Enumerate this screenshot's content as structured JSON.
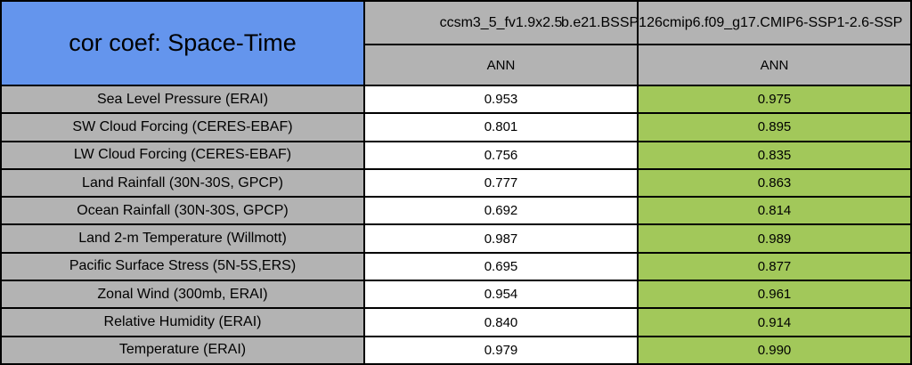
{
  "table": {
    "title": "cor coef: Space-Time",
    "columns": [
      {
        "model": "ccsm3_5_fv1.9x2.5",
        "season": "ANN"
      },
      {
        "model": "b.e21.BSSP126cmip6.f09_g17.CMIP6-SSP1-2.6-SSP",
        "season": "ANN",
        "note": "text clipped at right edge of image"
      }
    ],
    "rows": [
      {
        "label": "Sea Level Pressure (ERAI)",
        "values": [
          "0.953",
          "0.975"
        ]
      },
      {
        "label": "SW Cloud Forcing (CERES-EBAF)",
        "values": [
          "0.801",
          "0.895"
        ]
      },
      {
        "label": "LW Cloud Forcing (CERES-EBAF)",
        "values": [
          "0.756",
          "0.835"
        ]
      },
      {
        "label": "Land Rainfall (30N-30S, GPCP)",
        "values": [
          "0.777",
          "0.863"
        ]
      },
      {
        "label": "Ocean Rainfall (30N-30S, GPCP)",
        "values": [
          "0.692",
          "0.814"
        ]
      },
      {
        "label": "Land 2-m Temperature (Willmott)",
        "values": [
          "0.987",
          "0.989"
        ]
      },
      {
        "label": "Pacific Surface Stress (5N-5S,ERS)",
        "values": [
          "0.695",
          "0.877"
        ]
      },
      {
        "label": "Zonal Wind (300mb, ERAI)",
        "values": [
          "0.954",
          "0.961"
        ]
      },
      {
        "label": "Relative Humidity (ERAI)",
        "values": [
          "0.840",
          "0.914"
        ]
      },
      {
        "label": "Temperature (ERAI)",
        "values": [
          "0.979",
          "0.990"
        ]
      }
    ],
    "colors": {
      "header_blue": "#6495ED",
      "cell_gray": "#B3B3B3",
      "highlight_green": "#A2C85A",
      "value_white": "#FFFFFF",
      "border_black": "#000000"
    }
  },
  "chart_data": {
    "type": "table",
    "title": "cor coef: Space-Time",
    "row_labels": [
      "Sea Level Pressure (ERAI)",
      "SW Cloud Forcing (CERES-EBAF)",
      "LW Cloud Forcing (CERES-EBAF)",
      "Land Rainfall (30N-30S, GPCP)",
      "Ocean Rainfall (30N-30S, GPCP)",
      "Land 2-m Temperature (Willmott)",
      "Pacific Surface Stress (5N-5S,ERS)",
      "Zonal Wind (300mb, ERAI)",
      "Relative Humidity (ERAI)",
      "Temperature (ERAI)"
    ],
    "series": [
      {
        "name": "ccsm3_5_fv1.9x2.5 (ANN)",
        "values": [
          0.953,
          0.801,
          0.756,
          0.777,
          0.692,
          0.987,
          0.695,
          0.954,
          0.84,
          0.979
        ]
      },
      {
        "name": "b.e21.BSSP126cmip6.f09_g17.CMIP6-SSP1-2.6-SSP (ANN)",
        "values": [
          0.975,
          0.895,
          0.835,
          0.863,
          0.814,
          0.989,
          0.877,
          0.961,
          0.914,
          0.99
        ]
      }
    ],
    "layout_hints": {
      "highlighted_series_index": 1,
      "highlight_color": "#A2C85A",
      "second_model_name_clipped": true
    }
  }
}
